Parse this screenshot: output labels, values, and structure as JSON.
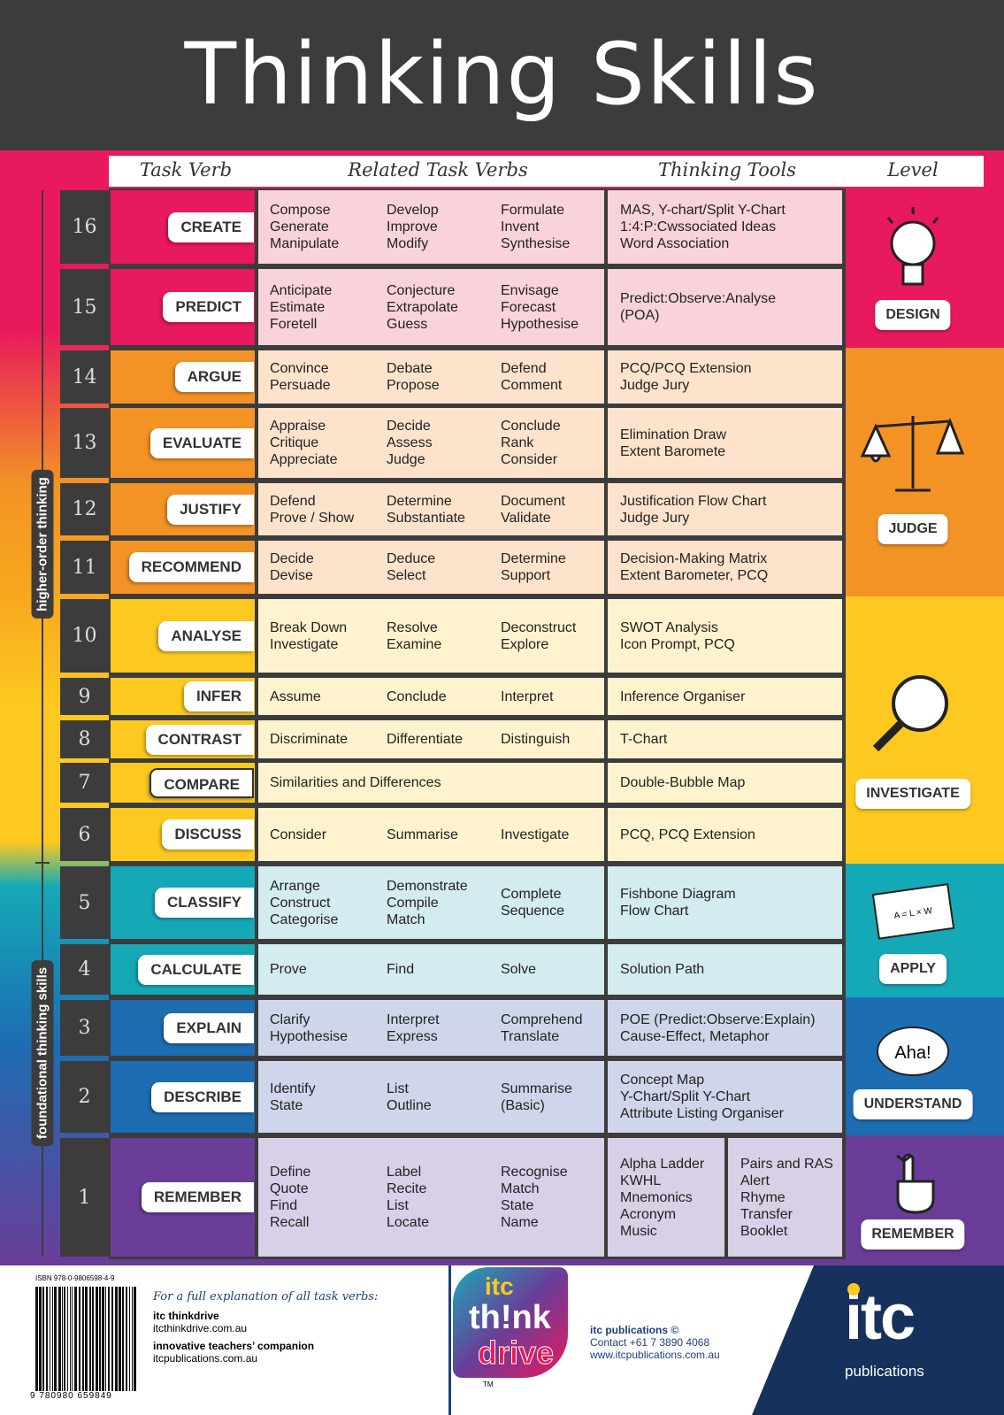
{
  "header": {
    "title": "Thinking Skills"
  },
  "columns": [
    "Task Verb",
    "Related Task Verbs",
    "Thinking Tools",
    "Level"
  ],
  "side_labels": {
    "upper": "higher-order thinking",
    "lower": "foundational thinking skills"
  },
  "rows": [
    {
      "number": 16,
      "verb": "CREATE",
      "related": [
        [
          "Compose",
          "Generate",
          "Manipulate"
        ],
        [
          "Develop",
          "Improve",
          "Modify"
        ],
        [
          "Formulate",
          "Invent",
          "Synthesise"
        ]
      ],
      "tools": [
        [
          "MAS, Y-chart/Split Y-Chart",
          "1:4:P:Cwssociated Ideas",
          "Word Association"
        ]
      ]
    },
    {
      "number": 15,
      "verb": "PREDICT",
      "related": [
        [
          "Anticipate",
          "Estimate",
          "Foretell"
        ],
        [
          "Conjecture",
          "Extrapolate",
          "Guess"
        ],
        [
          "Envisage",
          "Forecast",
          "Hypothesise"
        ]
      ],
      "tools": [
        [
          "Predict:Observe:Analyse",
          "(POA)"
        ]
      ]
    },
    {
      "number": 14,
      "verb": "ARGUE",
      "related": [
        [
          "Convince",
          "Persuade"
        ],
        [
          "Debate",
          "Propose"
        ],
        [
          "Defend",
          "Comment"
        ]
      ],
      "tools": [
        [
          "PCQ/PCQ Extension",
          "Judge Jury"
        ]
      ]
    },
    {
      "number": 13,
      "verb": "EVALUATE",
      "related": [
        [
          "Appraise",
          "Critique",
          "Appreciate"
        ],
        [
          "Decide",
          "Assess",
          "Judge"
        ],
        [
          "Conclude",
          "Rank",
          "Consider"
        ]
      ],
      "tools": [
        [
          "Elimination Draw",
          "Extent Baromete"
        ]
      ]
    },
    {
      "number": 12,
      "verb": "JUSTIFY",
      "related": [
        [
          "Defend",
          "Prove / Show"
        ],
        [
          "Determine",
          "Substantiate"
        ],
        [
          "Document",
          "Validate"
        ]
      ],
      "tools": [
        [
          "Justification Flow Chart",
          "Judge Jury"
        ]
      ]
    },
    {
      "number": 11,
      "verb": "RECOMMEND",
      "related": [
        [
          "Decide",
          "Devise"
        ],
        [
          "Deduce",
          "Select"
        ],
        [
          "Determine",
          "Support"
        ]
      ],
      "tools": [
        [
          "Decision-Making Matrix",
          "Extent Barometer, PCQ"
        ]
      ]
    },
    {
      "number": 10,
      "verb": "ANALYSE",
      "related": [
        [
          "Break Down",
          "Investigate"
        ],
        [
          "Resolve",
          "Examine"
        ],
        [
          "Deconstruct",
          "Explore"
        ]
      ],
      "tools": [
        [
          "SWOT Analysis",
          "Icon Prompt, PCQ"
        ]
      ]
    },
    {
      "number": 9,
      "verb": "INFER",
      "related": [
        [
          "Assume"
        ],
        [
          "Conclude"
        ],
        [
          "Interpret"
        ]
      ],
      "tools": [
        [
          "Inference Organiser"
        ]
      ]
    },
    {
      "number": 8,
      "verb": "CONTRAST",
      "related": [
        [
          "Discriminate"
        ],
        [
          "Differentiate"
        ],
        [
          "Distinguish"
        ]
      ],
      "tools": [
        [
          "T-Chart"
        ]
      ]
    },
    {
      "number": 7,
      "verb": "COMPARE",
      "related": [
        [
          "Similarities and Differences"
        ]
      ],
      "tools": [
        [
          "Double-Bubble Map"
        ]
      ]
    },
    {
      "number": 6,
      "verb": "DISCUSS",
      "related": [
        [
          "Consider"
        ],
        [
          "Summarise"
        ],
        [
          "Investigate"
        ]
      ],
      "tools": [
        [
          "PCQ, PCQ Extension"
        ]
      ]
    },
    {
      "number": 5,
      "verb": "CLASSIFY",
      "related": [
        [
          "Arrange",
          "Construct",
          "Categorise"
        ],
        [
          "Demonstrate",
          "Compile",
          "Match"
        ],
        [
          "Complete",
          "Sequence"
        ]
      ],
      "tools": [
        [
          "Fishbone Diagram",
          "Flow Chart"
        ]
      ]
    },
    {
      "number": 4,
      "verb": "CALCULATE",
      "related": [
        [
          "Prove"
        ],
        [
          "Find"
        ],
        [
          "Solve"
        ]
      ],
      "tools": [
        [
          "Solution Path"
        ]
      ]
    },
    {
      "number": 3,
      "verb": "EXPLAIN",
      "related": [
        [
          "Clarify",
          "Hypothesise"
        ],
        [
          "Interpret",
          "Express"
        ],
        [
          "Comprehend",
          "Translate"
        ]
      ],
      "tools": [
        [
          "POE (Predict:Observe:Explain)",
          "Cause-Effect, Metaphor"
        ]
      ]
    },
    {
      "number": 2,
      "verb": "DESCRIBE",
      "related": [
        [
          "Identify",
          "State"
        ],
        [
          "List",
          "Outline"
        ],
        [
          "Summarise",
          "(Basic)"
        ]
      ],
      "tools": [
        [
          "Concept Map",
          "Y-Chart/Split Y-Chart",
          "Attribute Listing Organiser"
        ]
      ]
    },
    {
      "number": 1,
      "verb": "REMEMBER",
      "related": [
        [
          "Define",
          "Quote",
          "Find",
          "Recall"
        ],
        [
          "Label",
          "Recite",
          "List",
          "Locate"
        ],
        [
          "Recognise",
          "Match",
          "State",
          "Name"
        ]
      ],
      "tools": [
        [
          "Alpha Ladder",
          "KWHL",
          "Mnemonics",
          "Acronym",
          "Music"
        ],
        [
          "Pairs and RAS",
          "Alert",
          "Rhyme",
          "Transfer",
          "Booklet"
        ]
      ]
    }
  ],
  "levels": [
    {
      "label": "DESIGN"
    },
    {
      "label": "JUDGE"
    },
    {
      "label": "INVESTIGATE"
    },
    {
      "label": "APPLY",
      "icon_text": "A = L × W"
    },
    {
      "label": "UNDERSTAND",
      "icon_text": "Aha!"
    },
    {
      "label": "REMEMBER"
    }
  ],
  "footer": {
    "isbn": "ISBN 978-0-9806598-4-9",
    "barcode_digits": "9 780980 659849",
    "intro": "For a full explanation of all task verbs:",
    "links": [
      {
        "name": "itc thinkdrive",
        "url": "itcthinkdrive.com.au"
      },
      {
        "name": "innovative teachers’ companion",
        "url": "itcpublications.com.au"
      }
    ],
    "logo": [
      "itc",
      "th!nk",
      "drive"
    ],
    "tm": "TM",
    "publisher": {
      "name": "itc publications ©",
      "contact": "Contact +61 7 3890 4068",
      "web": "www.itcpublications.com.au"
    },
    "brand": {
      "mark": "itc",
      "word": "publications"
    }
  }
}
